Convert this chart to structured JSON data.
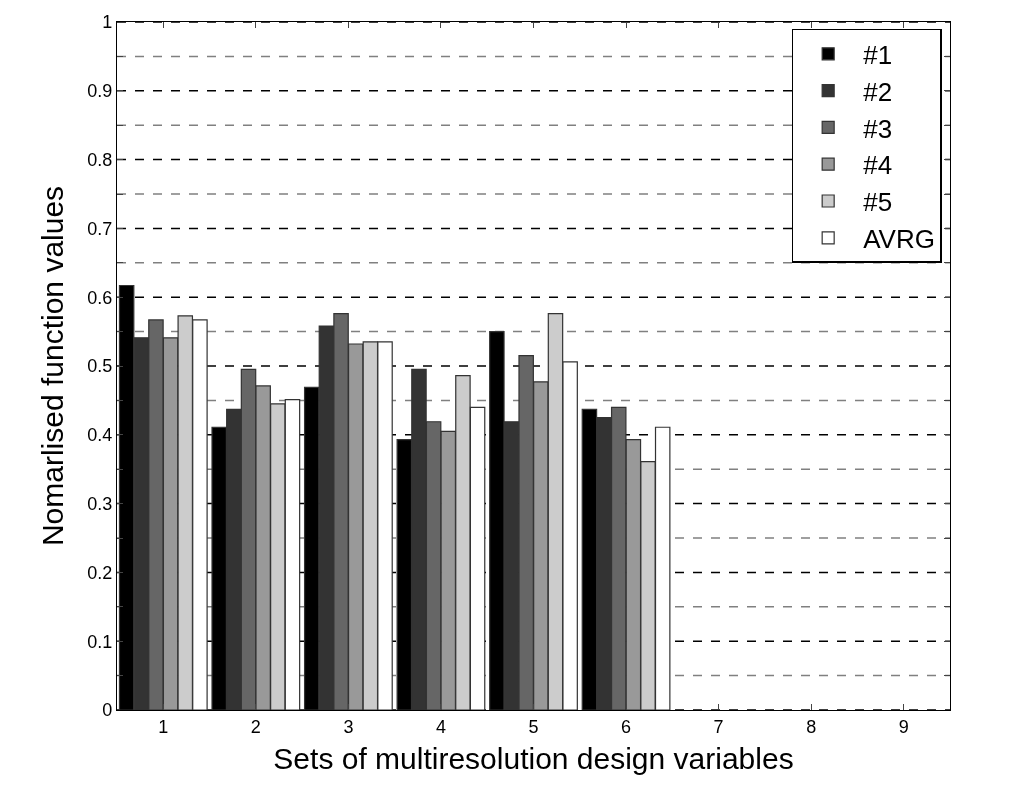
{
  "chart_data": {
    "type": "bar",
    "xlabel": "Sets of multiresolution design variables",
    "ylabel": "Nomarlised function values",
    "x": [
      1,
      2,
      3,
      4,
      5,
      6
    ],
    "series": [
      {
        "name": "#1",
        "color": "#000000",
        "values": [
          0.617,
          0.411,
          0.469,
          0.393,
          0.55,
          0.437
        ]
      },
      {
        "name": "#2",
        "color": "#333333",
        "values": [
          0.541,
          0.437,
          0.558,
          0.495,
          0.419,
          0.425
        ]
      },
      {
        "name": "#3",
        "color": "#666666",
        "values": [
          0.567,
          0.495,
          0.576,
          0.419,
          0.515,
          0.44
        ]
      },
      {
        "name": "#4",
        "color": "#999999",
        "values": [
          0.541,
          0.471,
          0.532,
          0.405,
          0.477,
          0.393
        ]
      },
      {
        "name": "#5",
        "color": "#cccccc",
        "values": [
          0.573,
          0.445,
          0.535,
          0.486,
          0.576,
          0.361
        ]
      },
      {
        "name": "AVRG",
        "color": "#ffffff",
        "values": [
          0.567,
          0.451,
          0.535,
          0.44,
          0.506,
          0.411
        ]
      }
    ],
    "xlim": [
      0.5,
      9.5
    ],
    "xticks": [
      1,
      2,
      3,
      4,
      5,
      6,
      7,
      8,
      9
    ],
    "ylim": [
      0,
      1
    ],
    "yticks": [
      0,
      {
        "value": 0.05,
        "label": null
      },
      0.1,
      {
        "value": 0.15,
        "label": null
      },
      0.2,
      {
        "value": 0.25,
        "label": null
      },
      0.3,
      {
        "value": 0.35,
        "label": null
      },
      0.4,
      {
        "value": 0.45,
        "label": null
      },
      0.5,
      {
        "value": 0.55,
        "label": null
      },
      0.6,
      {
        "value": 0.65,
        "label": null
      },
      0.7,
      {
        "value": 0.75,
        "label": null
      },
      0.8,
      {
        "value": 0.85,
        "label": null
      },
      0.9,
      {
        "value": 0.95,
        "label": null
      },
      1
    ],
    "grid": "y",
    "line_style": "dashed",
    "legend": "top right"
  }
}
